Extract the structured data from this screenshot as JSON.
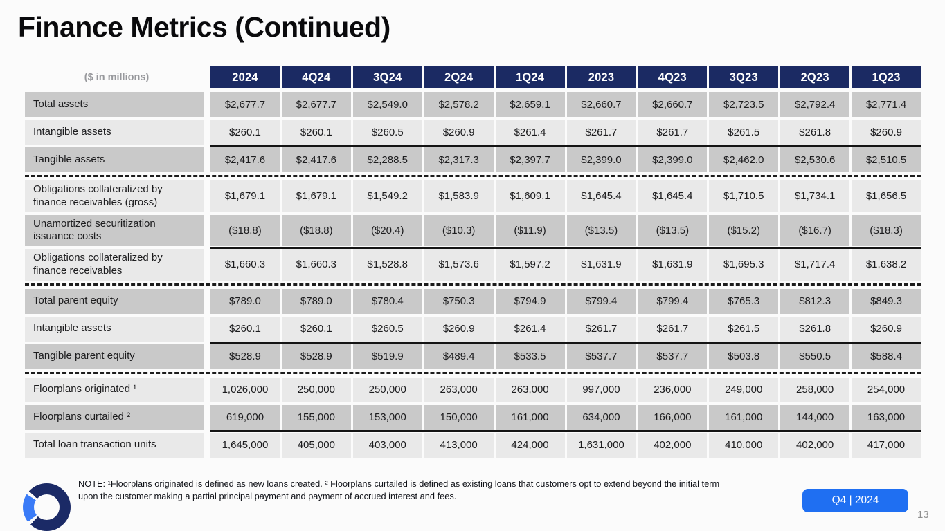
{
  "slide": {
    "title": "Finance Metrics (Continued)",
    "note_line1": "NOTE: ¹Floorplans originated is defined as new loans created. ² Floorplans curtailed is defined as existing loans that customers opt to extend beyond the initial term",
    "note_line2": "upon the customer making a partial principal payment and payment of accrued interest and fees.",
    "period_badge": "Q4 | 2024",
    "page_number": "13"
  },
  "colors": {
    "header_navy": "#1b2a63",
    "row_dark": "#c9c9c9",
    "row_light": "#e9e9e9",
    "badge_blue": "#1f6ff2",
    "logo_navy": "#1b2a66",
    "logo_blue": "#3a7bf7",
    "background": "#fbfbfb"
  },
  "table": {
    "corner_label": "($ in millions)",
    "columns": [
      "2024",
      "4Q24",
      "3Q24",
      "2Q24",
      "1Q24",
      "2023",
      "4Q23",
      "3Q23",
      "2Q23",
      "1Q23"
    ],
    "rows": [
      {
        "label": "Total assets",
        "values": [
          "$2,677.7",
          "$2,677.7",
          "$2,549.0",
          "$2,578.2",
          "$2,659.1",
          "$2,660.7",
          "$2,660.7",
          "$2,723.5",
          "$2,792.4",
          "$2,771.4"
        ]
      },
      {
        "label": "Intangible assets",
        "values": [
          "$260.1",
          "$260.1",
          "$260.5",
          "$260.9",
          "$261.4",
          "$261.7",
          "$261.7",
          "$261.5",
          "$261.8",
          "$260.9"
        ]
      },
      {
        "label": "Tangible assets",
        "top_rule": true,
        "dashed_after": true,
        "values": [
          "$2,417.6",
          "$2,417.6",
          "$2,288.5",
          "$2,317.3",
          "$2,397.7",
          "$2,399.0",
          "$2,399.0",
          "$2,462.0",
          "$2,530.6",
          "$2,510.5"
        ]
      },
      {
        "label": "Obligations collateralized by finance receivables (gross)",
        "values": [
          "$1,679.1",
          "$1,679.1",
          "$1,549.2",
          "$1,583.9",
          "$1,609.1",
          "$1,645.4",
          "$1,645.4",
          "$1,710.5",
          "$1,734.1",
          "$1,656.5"
        ]
      },
      {
        "label": "Unamortized securitization issuance costs",
        "values": [
          "($18.8)",
          "($18.8)",
          "($20.4)",
          "($10.3)",
          "($11.9)",
          "($13.5)",
          "($13.5)",
          "($15.2)",
          "($16.7)",
          "($18.3)"
        ]
      },
      {
        "label": "Obligations collateralized by finance receivables",
        "top_rule": true,
        "dashed_after": true,
        "values": [
          "$1,660.3",
          "$1,660.3",
          "$1,528.8",
          "$1,573.6",
          "$1,597.2",
          "$1,631.9",
          "$1,631.9",
          "$1,695.3",
          "$1,717.4",
          "$1,638.2"
        ]
      },
      {
        "label": "Total parent equity",
        "values": [
          "$789.0",
          "$789.0",
          "$780.4",
          "$750.3",
          "$794.9",
          "$799.4",
          "$799.4",
          "$765.3",
          "$812.3",
          "$849.3"
        ]
      },
      {
        "label": "Intangible assets",
        "values": [
          "$260.1",
          "$260.1",
          "$260.5",
          "$260.9",
          "$261.4",
          "$261.7",
          "$261.7",
          "$261.5",
          "$261.8",
          "$260.9"
        ]
      },
      {
        "label": "Tangible parent equity",
        "top_rule": true,
        "dashed_after": true,
        "values": [
          "$528.9",
          "$528.9",
          "$519.9",
          "$489.4",
          "$533.5",
          "$537.7",
          "$537.7",
          "$503.8",
          "$550.5",
          "$588.4"
        ]
      },
      {
        "label": "Floorplans originated ¹",
        "values": [
          "1,026,000",
          "250,000",
          "250,000",
          "263,000",
          "263,000",
          "997,000",
          "236,000",
          "249,000",
          "258,000",
          "254,000"
        ]
      },
      {
        "label": "Floorplans curtailed ²",
        "values": [
          "619,000",
          "155,000",
          "153,000",
          "150,000",
          "161,000",
          "634,000",
          "166,000",
          "161,000",
          "144,000",
          "163,000"
        ]
      },
      {
        "label": "Total loan transaction units",
        "top_rule": true,
        "values": [
          "1,645,000",
          "405,000",
          "403,000",
          "413,000",
          "424,000",
          "1,631,000",
          "402,000",
          "410,000",
          "402,000",
          "417,000"
        ]
      }
    ]
  }
}
